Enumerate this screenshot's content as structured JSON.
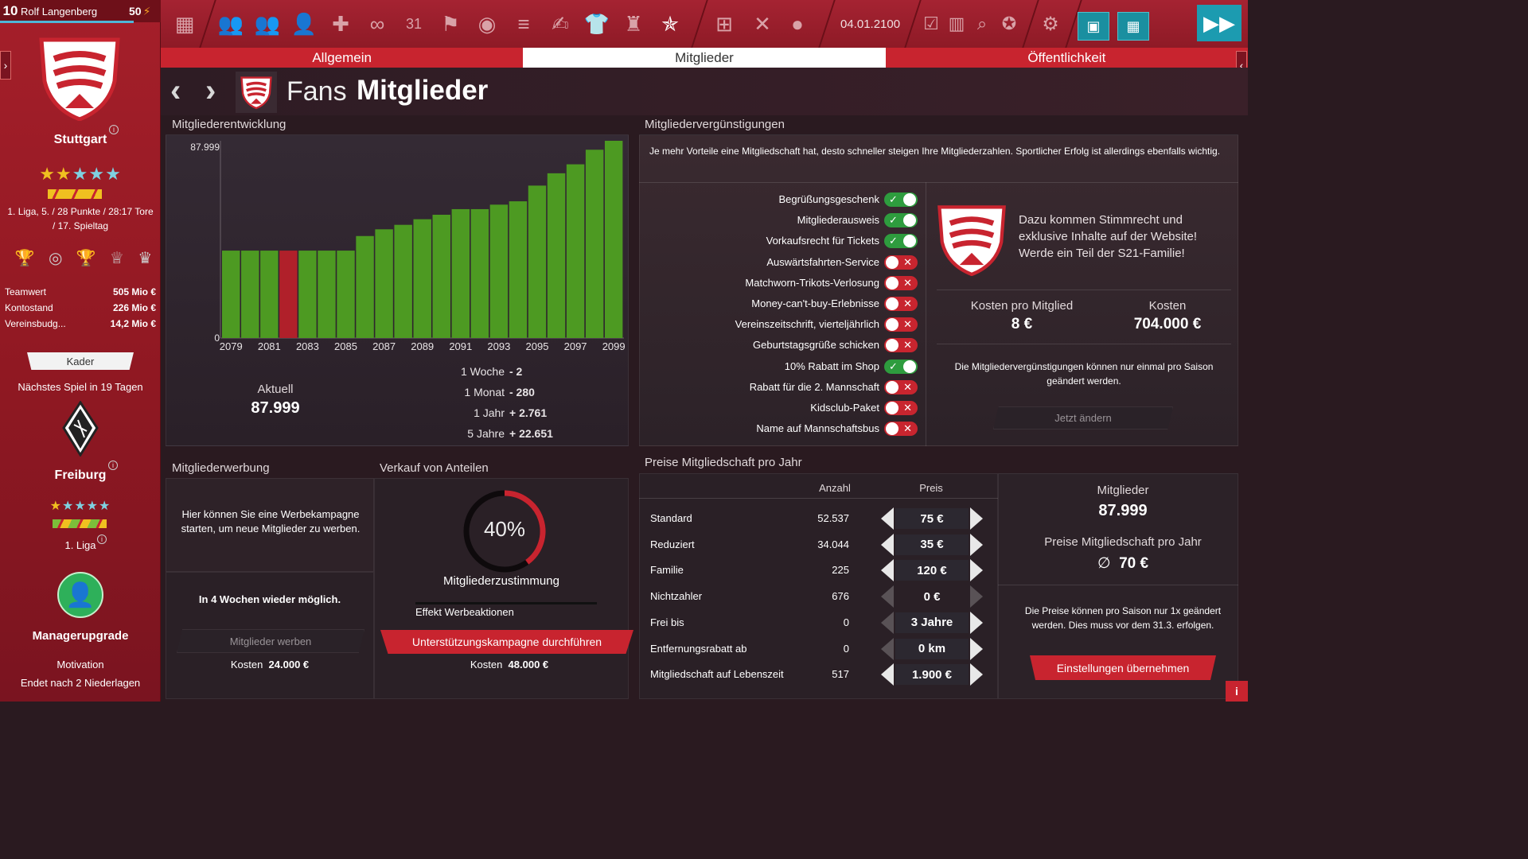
{
  "sidebar": {
    "rank": "10",
    "manager": "Rolf Langenberg",
    "energy": "50",
    "club": {
      "name": "Stuttgart",
      "stars_full": 2,
      "stars_total": 5,
      "league_line1": "1. Liga, 5. / 28 Punkte / 28:17 Tore",
      "league_line2": "/ 17. Spieltag"
    },
    "finance": [
      {
        "label": "Teamwert",
        "value": "505 Mio €"
      },
      {
        "label": "Kontostand",
        "value": "226 Mio €"
      },
      {
        "label": "Vereinsbudg...",
        "value": "14,2 Mio €"
      }
    ],
    "squad_button": "Kader",
    "next_match": "Nächstes Spiel in 19 Tagen",
    "opponent": {
      "name": "Freiburg",
      "stars_full": 1,
      "stars_total": 5,
      "league": "1. Liga"
    },
    "upgrade": {
      "title": "Managerupgrade",
      "line1": "Motivation",
      "line2": "Endet nach 2 Niederlagen"
    }
  },
  "topbar": {
    "date": "04.01.2100"
  },
  "tabs": [
    {
      "label": "Allgemein",
      "active": false
    },
    {
      "label": "Mitglieder",
      "active": true
    },
    {
      "label": "Öffentlichkeit",
      "active": false
    }
  ],
  "header": {
    "title_prefix": "Fans",
    "title_main": "Mitglieder"
  },
  "development": {
    "title": "Mitgliederentwicklung",
    "current_label": "Aktuell",
    "current_value": "87.999",
    "changes": [
      {
        "label": "1 Woche",
        "value": "- 2"
      },
      {
        "label": "1 Monat",
        "value": "- 280"
      },
      {
        "label": "1 Jahr",
        "value": "+ 2.761"
      },
      {
        "label": "5 Jahre",
        "value": "+ 22.651"
      }
    ]
  },
  "chart_data": {
    "type": "bar",
    "ylim": [
      0,
      87999
    ],
    "y_tick_labels": [
      "87.999",
      "0"
    ],
    "x_tick_labels": [
      "2079",
      "2081",
      "2083",
      "2085",
      "2087",
      "2089",
      "2091",
      "2093",
      "2095",
      "2097",
      "2099"
    ],
    "categories": [
      "2079",
      "2080",
      "2081",
      "2082",
      "2083",
      "2084",
      "2085",
      "2086",
      "2087",
      "2088",
      "2089",
      "2090",
      "2091",
      "2092",
      "2093",
      "2094",
      "2095",
      "2096",
      "2097",
      "2098",
      "2099"
    ],
    "values": [
      39000,
      39000,
      39000,
      39000,
      39000,
      39000,
      39000,
      45500,
      48500,
      50500,
      53000,
      55000,
      57500,
      57500,
      59500,
      61000,
      68000,
      73500,
      77500,
      84000,
      87999
    ],
    "highlight_index": 3,
    "bar_color": "#4d9a22",
    "highlight_color": "#b0202a",
    "title": "",
    "xlabel": "",
    "ylabel": ""
  },
  "benefits": {
    "title": "Mitgliedervergünstigungen",
    "description": "Je mehr Vorteile eine Mitgliedschaft hat, desto schneller steigen Ihre Mitgliederzahlen. Sportlicher Erfolg ist allerdings ebenfalls wichtig.",
    "items": [
      {
        "label": "Begrüßungsgeschenk",
        "on": true
      },
      {
        "label": "Mitgliederausweis",
        "on": true
      },
      {
        "label": "Vorkaufsrecht für Tickets",
        "on": true
      },
      {
        "label": "Auswärtsfahrten-Service",
        "on": false
      },
      {
        "label": "Matchworn-Trikots-Verlosung",
        "on": false
      },
      {
        "label": "Money-can't-buy-Erlebnisse",
        "on": false
      },
      {
        "label": "Vereinszeitschrift, vierteljährlich",
        "on": false
      },
      {
        "label": "Geburtstagsgrüße schicken",
        "on": false
      },
      {
        "label": "10% Rabatt im Shop",
        "on": true
      },
      {
        "label": "Rabatt für die 2. Mannschaft",
        "on": false
      },
      {
        "label": "Kidsclub-Paket",
        "on": false
      },
      {
        "label": "Name auf Mannschaftsbus",
        "on": false
      }
    ],
    "promo_text": "Dazu kommen Stimmrecht und exklusive Inhalte auf der Website! Werde ein Teil der S21-Familie!",
    "cost_per_member_label": "Kosten pro Mitglied",
    "cost_per_member": "8 €",
    "cost_label": "Kosten",
    "cost": "704.000 €",
    "note": "Die Mitgliedervergünstigungen können nur einmal pro Saison geändert werden.",
    "change_button": "Jetzt ändern"
  },
  "recruiting": {
    "title": "Mitgliederwerbung",
    "text": "Hier können Sie eine Werbekampagne starten, um neue Mitglieder zu werben.",
    "availability": "In 4 Wochen wieder möglich.",
    "button": "Mitglieder werben",
    "cost_label": "Kosten",
    "cost": "24.000 €"
  },
  "shares": {
    "title": "Verkauf von Anteilen",
    "approval": 0.4,
    "approval_text": "40%",
    "approval_label": "Mitgliederzustimmung",
    "effect_label": "Effekt Werbeaktionen",
    "button": "Unterstützungskampagne durchführen",
    "cost_label": "Kosten",
    "cost": "48.000 €"
  },
  "prices": {
    "title": "Preise Mitgliedschaft pro Jahr",
    "col_count": "Anzahl",
    "col_price": "Preis",
    "rows": [
      {
        "name": "Standard",
        "count": "52.537",
        "price": "75 €",
        "left": true,
        "right": true,
        "boxed": true
      },
      {
        "name": "Reduziert",
        "count": "34.044",
        "price": "35 €",
        "left": true,
        "right": true,
        "boxed": true
      },
      {
        "name": "Familie",
        "count": "225",
        "price": "120 €",
        "left": true,
        "right": true,
        "boxed": true
      },
      {
        "name": "Nichtzahler",
        "count": "676",
        "price": "0 €",
        "left": false,
        "right": false,
        "boxed": false
      },
      {
        "name": "Frei bis",
        "count": "0",
        "price": "3 Jahre",
        "left": false,
        "right": true,
        "boxed": true
      },
      {
        "name": "Entfernungsrabatt ab",
        "count": "0",
        "price": "0 km",
        "left": false,
        "right": true,
        "boxed": true
      },
      {
        "name": "Mitgliedschaft auf Lebenszeit",
        "count": "517",
        "price": "1.900 €",
        "left": true,
        "right": true,
        "boxed": true
      }
    ],
    "summary_members_label": "Mitglieder",
    "summary_members": "87.999",
    "summary_price_label": "Preise Mitgliedschaft pro Jahr",
    "summary_price_symbol": "∅",
    "summary_price": "70 €",
    "note": "Die Preise können pro Saison nur 1x geändert werden. Dies muss vor dem 31.3. erfolgen.",
    "apply_button": "Einstellungen übernehmen"
  }
}
